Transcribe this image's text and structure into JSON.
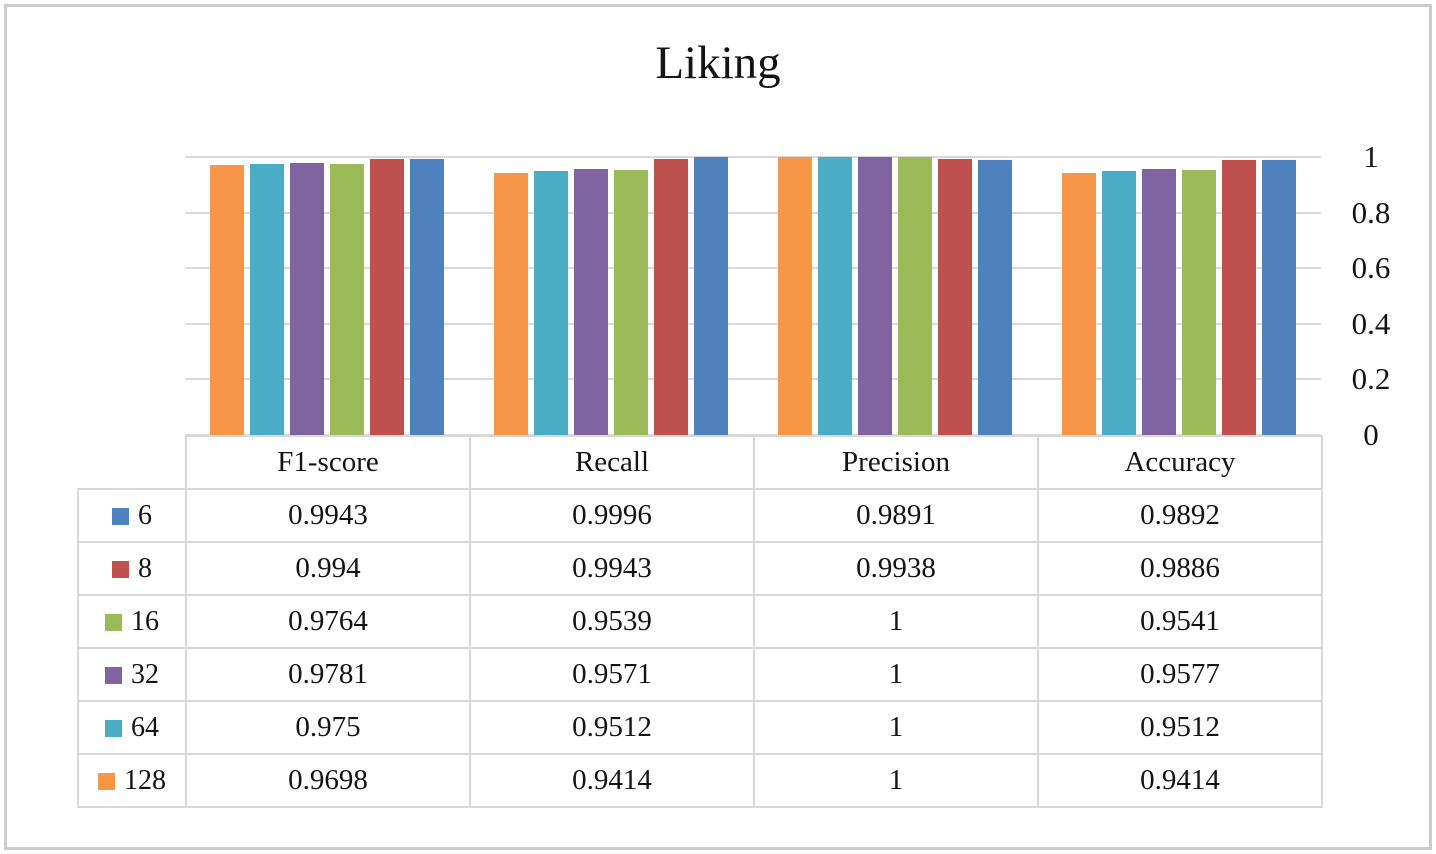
{
  "chart_data": {
    "type": "bar",
    "title": "Liking",
    "categories": [
      "F1-score",
      "Recall",
      "Precision",
      "Accuracy"
    ],
    "series": [
      {
        "name": "6",
        "color": "#4F81BD",
        "values": [
          0.9943,
          0.9996,
          0.9891,
          0.9892
        ],
        "cells": [
          "0.9943",
          "0.9996",
          "0.9891",
          "0.9892"
        ]
      },
      {
        "name": "8",
        "color": "#C0504D",
        "values": [
          0.994,
          0.9943,
          0.9938,
          0.9886
        ],
        "cells": [
          "0.994",
          "0.9943",
          "0.9938",
          "0.9886"
        ]
      },
      {
        "name": "16",
        "color": "#9BBB59",
        "values": [
          0.9764,
          0.9539,
          1,
          0.9541
        ],
        "cells": [
          "0.9764",
          "0.9539",
          "1",
          "0.9541"
        ]
      },
      {
        "name": "32",
        "color": "#8064A2",
        "values": [
          0.9781,
          0.9571,
          1,
          0.9577
        ],
        "cells": [
          "0.9781",
          "0.9571",
          "1",
          "0.9577"
        ]
      },
      {
        "name": "64",
        "color": "#4BACC6",
        "values": [
          0.975,
          0.9512,
          1,
          0.9512
        ],
        "cells": [
          "0.975",
          "0.9512",
          "1",
          "0.9512"
        ]
      },
      {
        "name": "128",
        "color": "#F79646",
        "values": [
          0.9698,
          0.9414,
          1,
          0.9414
        ],
        "cells": [
          "0.9698",
          "0.9414",
          "1",
          "0.9414"
        ]
      }
    ],
    "bar_order": [
      "128",
      "64",
      "32",
      "16",
      "8",
      "6"
    ],
    "y_axis": {
      "min": 0,
      "max": 1,
      "tick_labels": [
        "1",
        "0.8",
        "0.6",
        "0.4",
        "0.2",
        "0"
      ],
      "position": "right"
    },
    "grid": true,
    "legend_position": "data-table-left",
    "colors": {
      "gridline": "#D9D9D9",
      "table_border": "#D8D8D8",
      "chart_border": "#CBCBCB",
      "text": "#141414"
    }
  }
}
